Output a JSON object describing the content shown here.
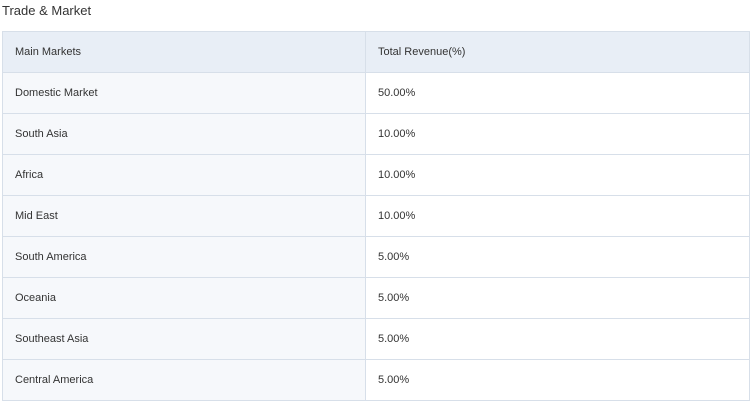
{
  "section": {
    "title": "Trade & Market"
  },
  "table": {
    "headers": [
      "Main Markets",
      "Total Revenue(%)"
    ],
    "rows": [
      {
        "market": "Domestic Market",
        "revenue": "50.00%"
      },
      {
        "market": "South Asia",
        "revenue": "10.00%"
      },
      {
        "market": "Africa",
        "revenue": "10.00%"
      },
      {
        "market": "Mid East",
        "revenue": "10.00%"
      },
      {
        "market": "South America",
        "revenue": "5.00%"
      },
      {
        "market": "Oceania",
        "revenue": "5.00%"
      },
      {
        "market": "Southeast Asia",
        "revenue": "5.00%"
      },
      {
        "market": "Central America",
        "revenue": "5.00%"
      }
    ]
  }
}
